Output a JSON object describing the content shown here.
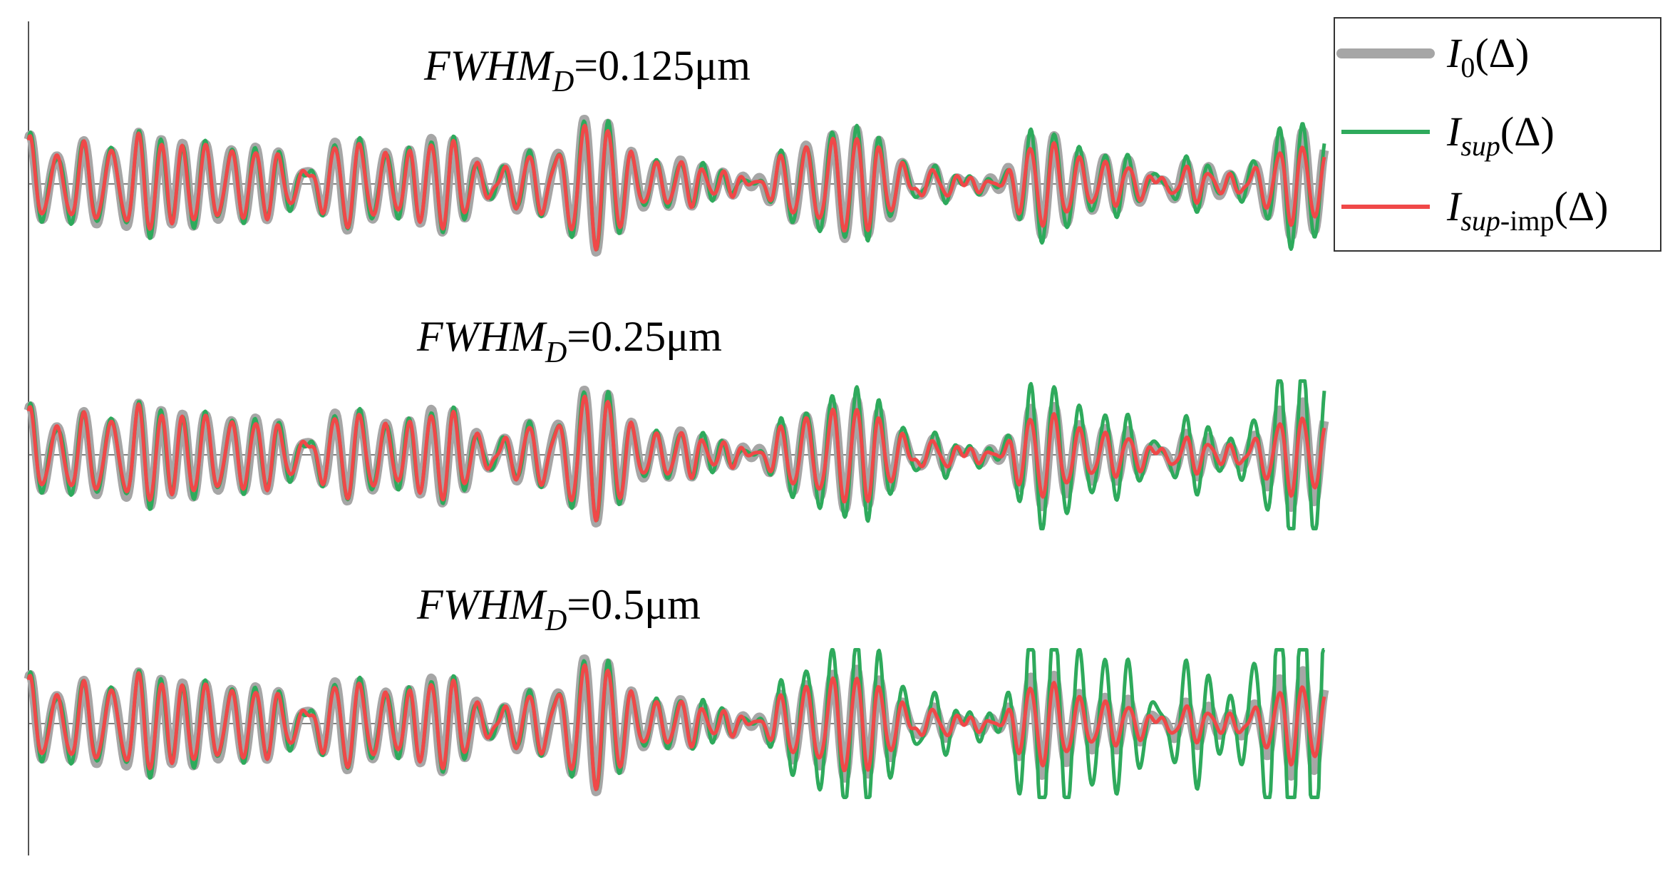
{
  "chart_data": {
    "type": "line",
    "title": "",
    "xlabel": "",
    "ylabel": "",
    "grid": false,
    "legend_placement": "top-right",
    "x_range": [
      0,
      1
    ],
    "y_range": [
      -1,
      1
    ],
    "legend": [
      {
        "id": "I0",
        "main": "I",
        "sub": "0",
        "paren": "(Δ)",
        "color": "#a6a6a6"
      },
      {
        "id": "Isup",
        "main": "I",
        "sub": "sup",
        "paren": "(Δ)",
        "color": "#2eaa5c"
      },
      {
        "id": "Isupimp",
        "main": "I",
        "sub": "sup",
        "sub2": "-imp",
        "paren": "(Δ)",
        "color": "#f04848"
      }
    ],
    "panels": [
      {
        "title_main": "FWHM",
        "title_sub": "D",
        "title_value": "=0.125μm",
        "green_growth": 1.2
      },
      {
        "title_main": "FWHM",
        "title_sub": "D",
        "title_value": "=0.25μm",
        "green_growth": 1.9
      },
      {
        "title_main": "FWHM",
        "title_sub": "D",
        "title_value": "=0.5μm",
        "green_growth": 3.4
      }
    ],
    "series_colors": {
      "I0": "#a6a6a6",
      "Isup": "#2eaa5c",
      "Isupimp": "#f04848"
    }
  }
}
